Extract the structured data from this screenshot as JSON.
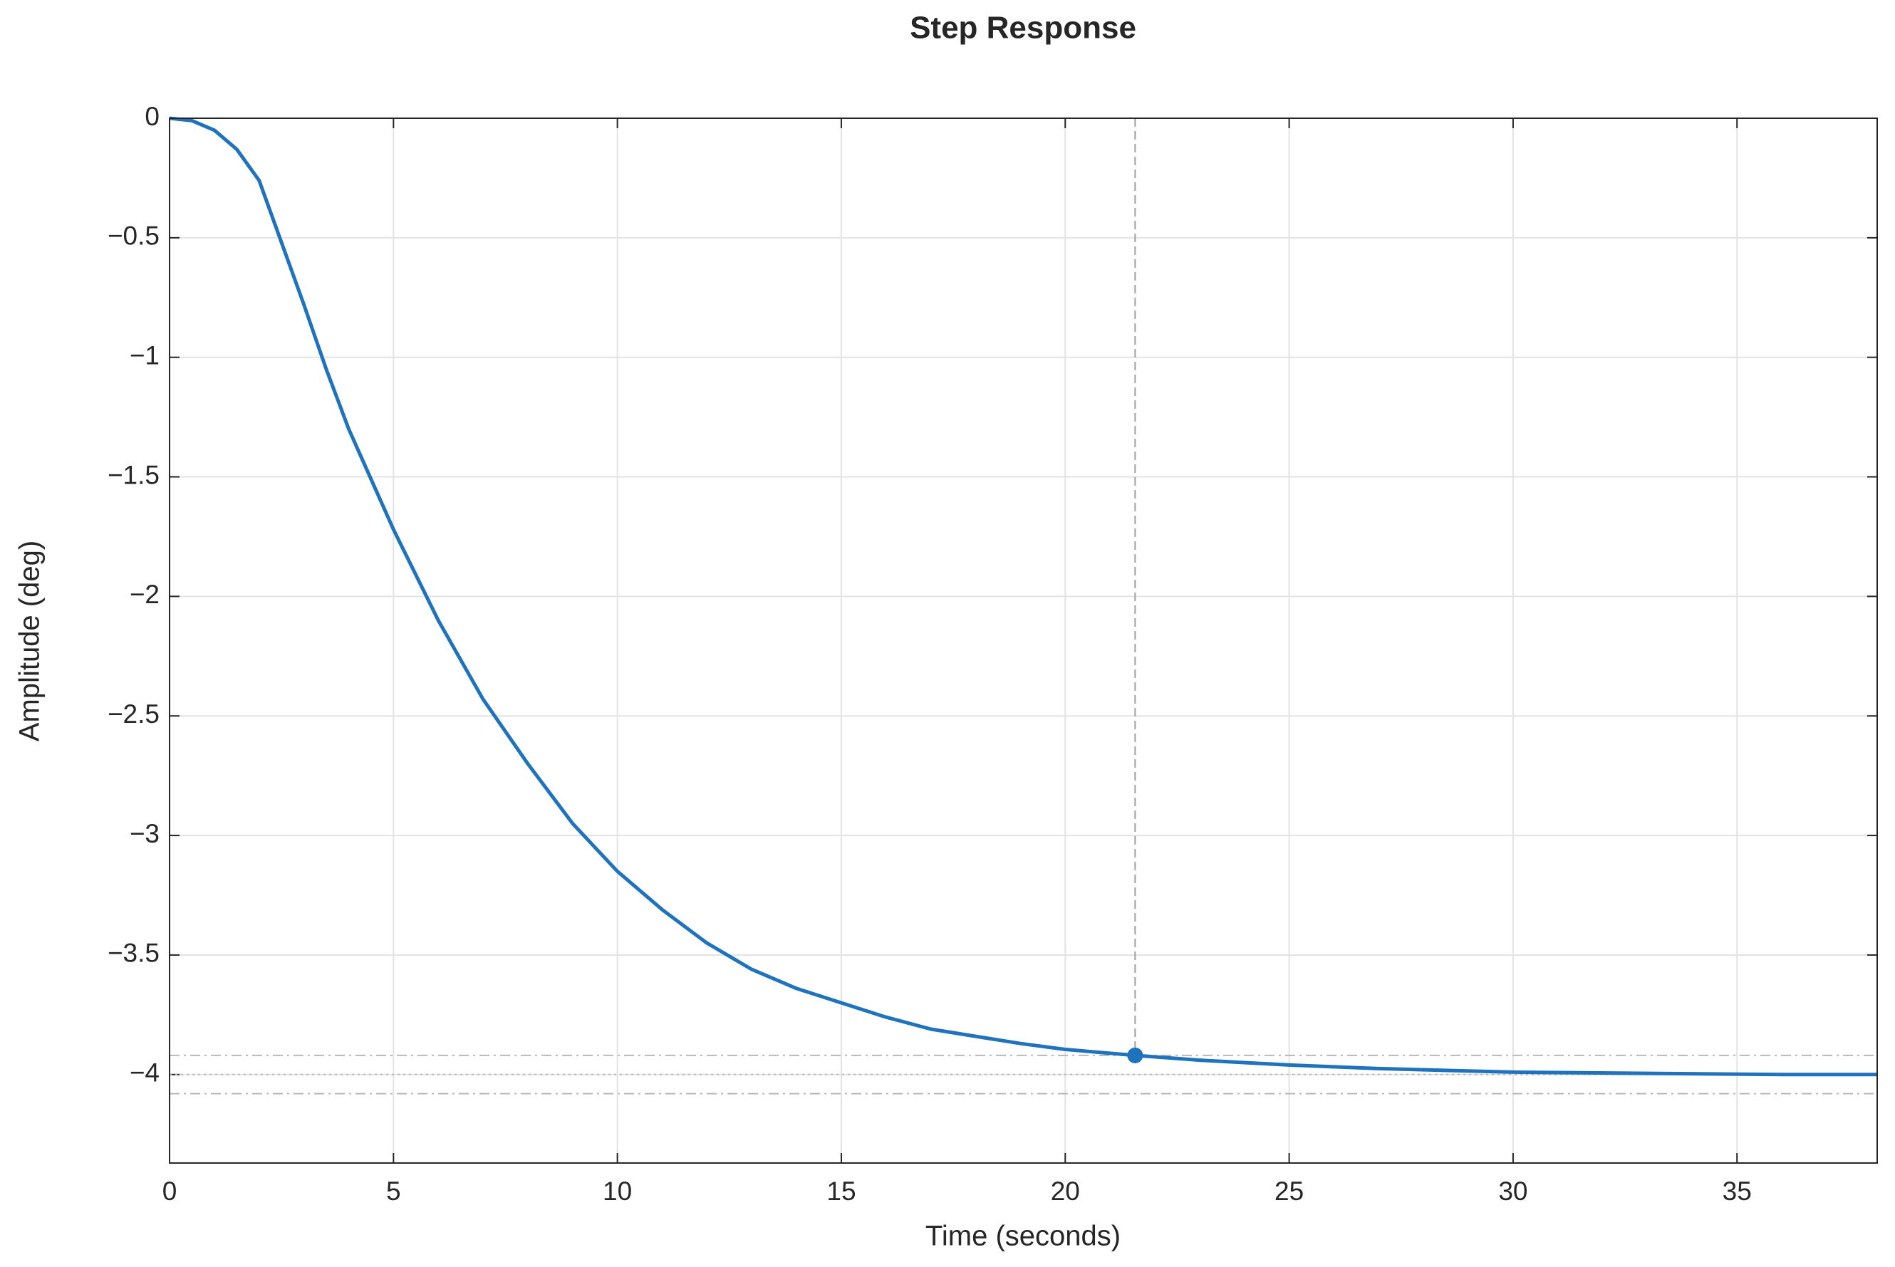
{
  "chart_data": {
    "type": "line",
    "title": "Step Response",
    "x_label": "Time (seconds)",
    "y_label": "Amplitude (deg)",
    "x": [
      0,
      0.5,
      1,
      1.5,
      2,
      2.5,
      3,
      3.5,
      4,
      5,
      6,
      7,
      8,
      9,
      10,
      11,
      12,
      13,
      14,
      15,
      16,
      17,
      18,
      19,
      20,
      21.56,
      23,
      25,
      27,
      30,
      33,
      36,
      38.13
    ],
    "series": [
      {
        "color": "#1f72bd",
        "values": [
          0,
          -0.01,
          -0.05,
          -0.13,
          -0.26,
          -0.52,
          -0.78,
          -1.05,
          -1.3,
          -1.72,
          -2.1,
          -2.43,
          -2.7,
          -2.95,
          -3.15,
          -3.31,
          -3.45,
          -3.56,
          -3.64,
          -3.7,
          -3.76,
          -3.81,
          -3.84,
          -3.87,
          -3.895,
          -3.92,
          -3.94,
          -3.96,
          -3.975,
          -3.99,
          -3.995,
          -4.0,
          -4.0
        ]
      }
    ],
    "settling_point": {
      "x": 21.56,
      "y": -3.92
    },
    "steady_state": -4,
    "settling_band": [
      -3.92,
      -4.08
    ],
    "xlim": [
      0,
      38.13
    ],
    "ylim": [
      -4.37,
      0
    ],
    "xticks": [
      0,
      5,
      10,
      15,
      20,
      25,
      30,
      35
    ],
    "yticks": [
      0,
      {
        "value": -0.5,
        "label": "−0.5"
      },
      {
        "value": -1,
        "label": "−1"
      },
      {
        "value": -1.5,
        "label": "−1.5"
      },
      {
        "value": -2,
        "label": "−2"
      },
      {
        "value": -2.5,
        "label": "−2.5"
      },
      {
        "value": -3,
        "label": "−3"
      },
      {
        "value": -3.5,
        "label": "−3.5"
      },
      {
        "value": -4,
        "label": "−4"
      }
    ],
    "grid": true
  }
}
